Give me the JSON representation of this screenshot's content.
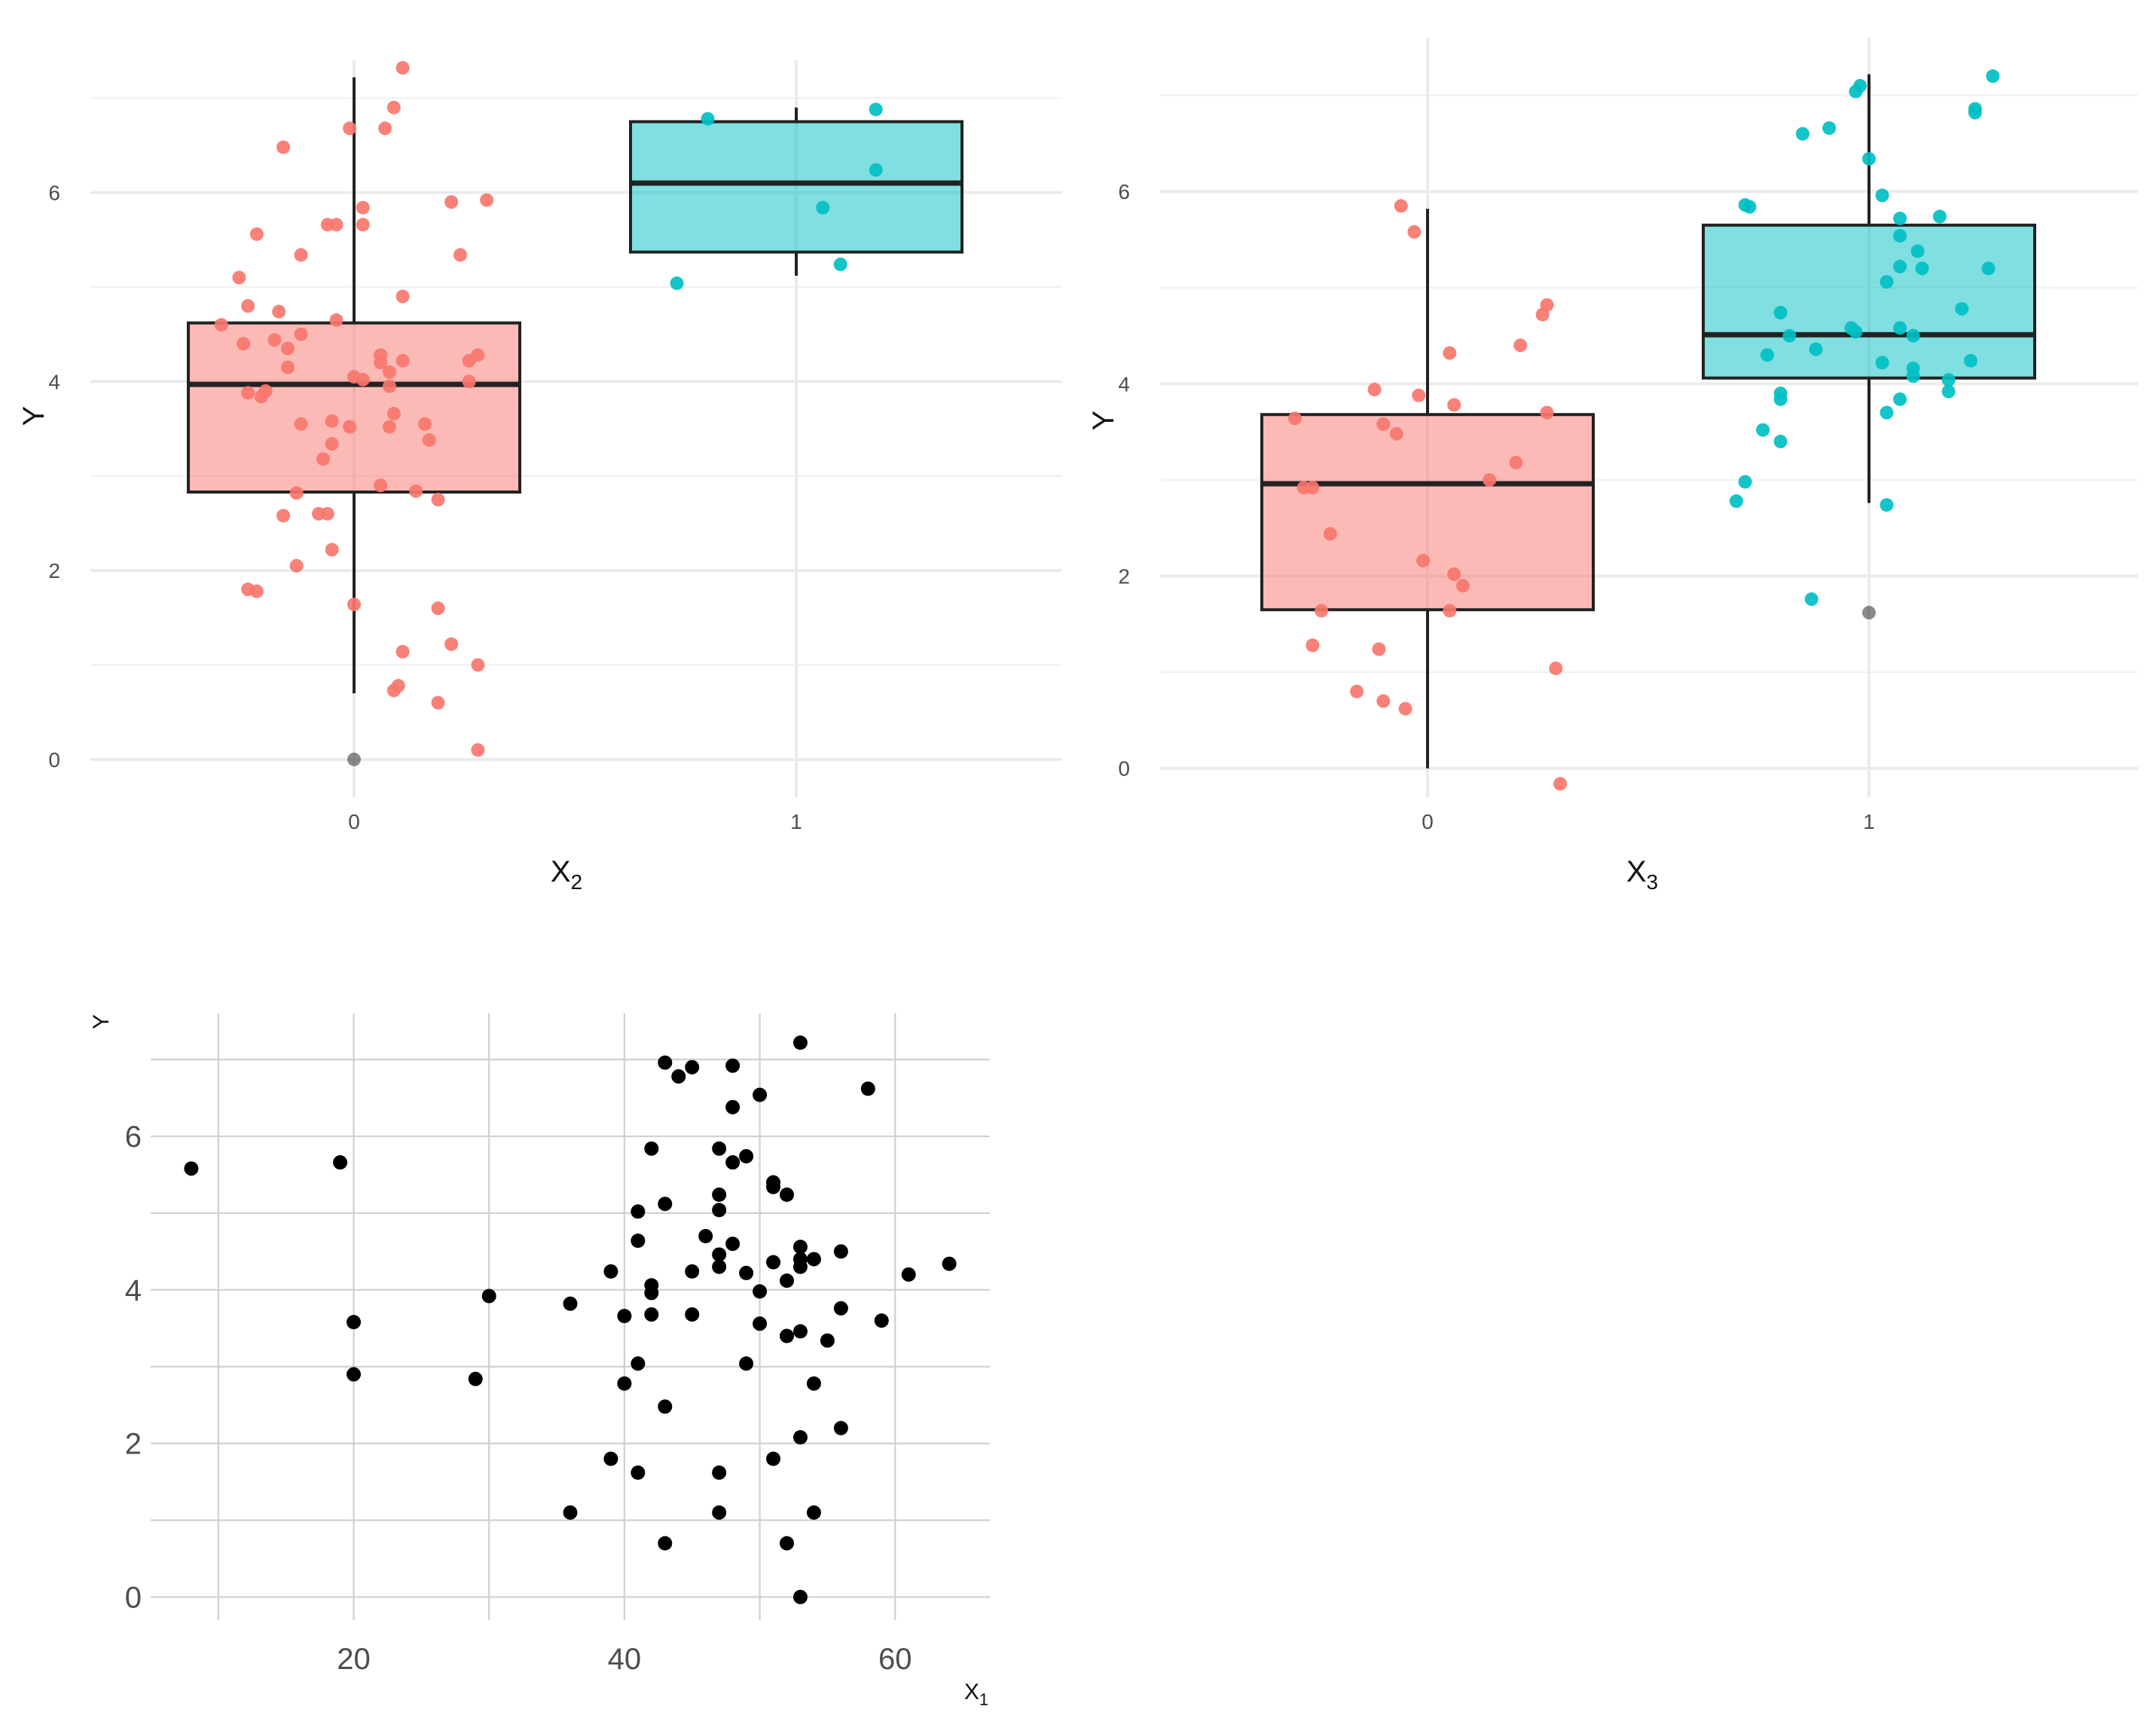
{
  "chart_data": [
    {
      "id": "panel_a",
      "type": "boxplot",
      "title": "",
      "xlabel": "X",
      "xlabel_sub": "2",
      "ylabel": "Y",
      "categories": [
        "0",
        "1"
      ],
      "y_ticks": [
        "0",
        "2",
        "4",
        "6"
      ],
      "ylim": [
        -0.4,
        7.4
      ],
      "colors": {
        "0": "#F8766D",
        "1": "#00BFC4"
      },
      "boxes": [
        {
          "category": "0",
          "min": 0.7,
          "q1": 2.83,
          "median": 3.97,
          "q3": 4.62,
          "max": 7.22,
          "outliers": [
            0.0
          ]
        },
        {
          "category": "1",
          "min": 5.12,
          "q1": 5.37,
          "median": 6.1,
          "q3": 6.75,
          "max": 6.9,
          "outliers": []
        }
      ],
      "points": [
        {
          "category": "0",
          "jitter": 0.11,
          "y": 7.32
        },
        {
          "category": "0",
          "jitter": 0.09,
          "y": 6.9
        },
        {
          "category": "0",
          "jitter": 0.07,
          "y": 6.68
        },
        {
          "category": "0",
          "jitter": -0.01,
          "y": 6.68
        },
        {
          "category": "0",
          "jitter": -0.16,
          "y": 6.48
        },
        {
          "category": "0",
          "jitter": 0.3,
          "y": 5.92
        },
        {
          "category": "0",
          "jitter": 0.22,
          "y": 5.9
        },
        {
          "category": "0",
          "jitter": 0.02,
          "y": 5.84
        },
        {
          "category": "0",
          "jitter": -0.04,
          "y": 5.66
        },
        {
          "category": "0",
          "jitter": -0.06,
          "y": 5.66
        },
        {
          "category": "0",
          "jitter": 0.02,
          "y": 5.66
        },
        {
          "category": "0",
          "jitter": -0.22,
          "y": 5.56
        },
        {
          "category": "0",
          "jitter": -0.12,
          "y": 5.34
        },
        {
          "category": "0",
          "jitter": 0.24,
          "y": 5.34
        },
        {
          "category": "0",
          "jitter": -0.26,
          "y": 5.1
        },
        {
          "category": "0",
          "jitter": 0.11,
          "y": 4.9
        },
        {
          "category": "0",
          "jitter": -0.24,
          "y": 4.8
        },
        {
          "category": "0",
          "jitter": -0.17,
          "y": 4.74
        },
        {
          "category": "0",
          "jitter": -0.04,
          "y": 4.65
        },
        {
          "category": "0",
          "jitter": -0.3,
          "y": 4.6
        },
        {
          "category": "0",
          "jitter": -0.12,
          "y": 4.5
        },
        {
          "category": "0",
          "jitter": -0.18,
          "y": 4.44
        },
        {
          "category": "0",
          "jitter": -0.25,
          "y": 4.4
        },
        {
          "category": "0",
          "jitter": -0.15,
          "y": 4.35
        },
        {
          "category": "0",
          "jitter": 0.06,
          "y": 4.28
        },
        {
          "category": "0",
          "jitter": 0.28,
          "y": 4.28
        },
        {
          "category": "0",
          "jitter": 0.11,
          "y": 4.22
        },
        {
          "category": "0",
          "jitter": 0.06,
          "y": 4.2
        },
        {
          "category": "0",
          "jitter": 0.26,
          "y": 4.22
        },
        {
          "category": "0",
          "jitter": -0.15,
          "y": 4.15
        },
        {
          "category": "0",
          "jitter": 0.08,
          "y": 4.1
        },
        {
          "category": "0",
          "jitter": 0.0,
          "y": 4.05
        },
        {
          "category": "0",
          "jitter": 0.02,
          "y": 4.02
        },
        {
          "category": "0",
          "jitter": 0.26,
          "y": 4.0
        },
        {
          "category": "0",
          "jitter": 0.08,
          "y": 3.95
        },
        {
          "category": "0",
          "jitter": -0.2,
          "y": 3.9
        },
        {
          "category": "0",
          "jitter": -0.24,
          "y": 3.88
        },
        {
          "category": "0",
          "jitter": -0.21,
          "y": 3.84
        },
        {
          "category": "0",
          "jitter": 0.09,
          "y": 3.66
        },
        {
          "category": "0",
          "jitter": -0.05,
          "y": 3.58
        },
        {
          "category": "0",
          "jitter": -0.12,
          "y": 3.55
        },
        {
          "category": "0",
          "jitter": 0.16,
          "y": 3.55
        },
        {
          "category": "0",
          "jitter": 0.08,
          "y": 3.52
        },
        {
          "category": "0",
          "jitter": -0.01,
          "y": 3.52
        },
        {
          "category": "0",
          "jitter": 0.17,
          "y": 3.38
        },
        {
          "category": "0",
          "jitter": -0.05,
          "y": 3.34
        },
        {
          "category": "0",
          "jitter": -0.07,
          "y": 3.18
        },
        {
          "category": "0",
          "jitter": 0.06,
          "y": 2.9
        },
        {
          "category": "0",
          "jitter": 0.14,
          "y": 2.84
        },
        {
          "category": "0",
          "jitter": -0.13,
          "y": 2.82
        },
        {
          "category": "0",
          "jitter": 0.19,
          "y": 2.75
        },
        {
          "category": "0",
          "jitter": -0.06,
          "y": 2.6
        },
        {
          "category": "0",
          "jitter": -0.08,
          "y": 2.6
        },
        {
          "category": "0",
          "jitter": -0.16,
          "y": 2.58
        },
        {
          "category": "0",
          "jitter": -0.05,
          "y": 2.22
        },
        {
          "category": "0",
          "jitter": -0.13,
          "y": 2.05
        },
        {
          "category": "0",
          "jitter": -0.24,
          "y": 1.8
        },
        {
          "category": "0",
          "jitter": -0.22,
          "y": 1.78
        },
        {
          "category": "0",
          "jitter": 0.0,
          "y": 1.64
        },
        {
          "category": "0",
          "jitter": 0.19,
          "y": 1.6
        },
        {
          "category": "0",
          "jitter": 0.22,
          "y": 1.22
        },
        {
          "category": "0",
          "jitter": 0.11,
          "y": 1.14
        },
        {
          "category": "0",
          "jitter": 0.28,
          "y": 1.0
        },
        {
          "category": "0",
          "jitter": 0.1,
          "y": 0.78
        },
        {
          "category": "0",
          "jitter": 0.09,
          "y": 0.73
        },
        {
          "category": "0",
          "jitter": 0.19,
          "y": 0.6
        },
        {
          "category": "0",
          "jitter": 0.28,
          "y": 0.1
        },
        {
          "category": "1",
          "jitter": 0.18,
          "y": 6.88
        },
        {
          "category": "1",
          "jitter": -0.2,
          "y": 6.78
        },
        {
          "category": "1",
          "jitter": 0.18,
          "y": 6.24
        },
        {
          "category": "1",
          "jitter": 0.06,
          "y": 5.84
        },
        {
          "category": "1",
          "jitter": 0.1,
          "y": 5.24
        },
        {
          "category": "1",
          "jitter": -0.27,
          "y": 5.04
        }
      ]
    },
    {
      "id": "panel_b",
      "type": "boxplot",
      "title": "",
      "xlabel": "X",
      "xlabel_sub": "3",
      "ylabel": "Y",
      "categories": [
        "0",
        "1"
      ],
      "y_ticks": [
        "0",
        "2",
        "4",
        "6"
      ],
      "ylim": [
        -0.3,
        7.6
      ],
      "colors": {
        "0": "#F8766D",
        "1": "#00BFC4"
      },
      "boxes": [
        {
          "category": "0",
          "min": 0.0,
          "q1": 1.65,
          "median": 2.96,
          "q3": 3.68,
          "max": 5.82,
          "outliers": []
        },
        {
          "category": "1",
          "min": 2.76,
          "q1": 4.06,
          "median": 4.51,
          "q3": 5.65,
          "max": 7.22,
          "outliers": [
            1.62
          ]
        }
      ],
      "points": [
        {
          "category": "0",
          "jitter": -0.06,
          "y": 5.85
        },
        {
          "category": "0",
          "jitter": -0.03,
          "y": 5.58
        },
        {
          "category": "0",
          "jitter": 0.27,
          "y": 4.82
        },
        {
          "category": "0",
          "jitter": 0.26,
          "y": 4.72
        },
        {
          "category": "0",
          "jitter": 0.21,
          "y": 4.4
        },
        {
          "category": "0",
          "jitter": 0.05,
          "y": 4.32
        },
        {
          "category": "0",
          "jitter": -0.12,
          "y": 3.94
        },
        {
          "category": "0",
          "jitter": -0.02,
          "y": 3.88
        },
        {
          "category": "0",
          "jitter": 0.06,
          "y": 3.78
        },
        {
          "category": "0",
          "jitter": 0.27,
          "y": 3.7
        },
        {
          "category": "0",
          "jitter": -0.3,
          "y": 3.64
        },
        {
          "category": "0",
          "jitter": -0.1,
          "y": 3.58
        },
        {
          "category": "0",
          "jitter": -0.07,
          "y": 3.48
        },
        {
          "category": "0",
          "jitter": 0.2,
          "y": 3.18
        },
        {
          "category": "0",
          "jitter": 0.14,
          "y": 3.0
        },
        {
          "category": "0",
          "jitter": -0.28,
          "y": 2.92
        },
        {
          "category": "0",
          "jitter": -0.26,
          "y": 2.92
        },
        {
          "category": "0",
          "jitter": -0.22,
          "y": 2.44
        },
        {
          "category": "0",
          "jitter": -0.01,
          "y": 2.16
        },
        {
          "category": "0",
          "jitter": 0.06,
          "y": 2.02
        },
        {
          "category": "0",
          "jitter": 0.08,
          "y": 1.9
        },
        {
          "category": "0",
          "jitter": -0.24,
          "y": 1.64
        },
        {
          "category": "0",
          "jitter": 0.05,
          "y": 1.64
        },
        {
          "category": "0",
          "jitter": -0.26,
          "y": 1.28
        },
        {
          "category": "0",
          "jitter": -0.11,
          "y": 1.24
        },
        {
          "category": "0",
          "jitter": 0.29,
          "y": 1.04
        },
        {
          "category": "0",
          "jitter": -0.16,
          "y": 0.8
        },
        {
          "category": "0",
          "jitter": -0.1,
          "y": 0.7
        },
        {
          "category": "0",
          "jitter": -0.05,
          "y": 0.62
        },
        {
          "category": "0",
          "jitter": 0.3,
          "y": -0.16
        },
        {
          "category": "1",
          "jitter": 0.28,
          "y": 7.2
        },
        {
          "category": "1",
          "jitter": -0.02,
          "y": 7.1
        },
        {
          "category": "1",
          "jitter": -0.03,
          "y": 7.04
        },
        {
          "category": "1",
          "jitter": 0.24,
          "y": 6.86
        },
        {
          "category": "1",
          "jitter": 0.24,
          "y": 6.82
        },
        {
          "category": "1",
          "jitter": -0.09,
          "y": 6.66
        },
        {
          "category": "1",
          "jitter": -0.15,
          "y": 6.6
        },
        {
          "category": "1",
          "jitter": 0.0,
          "y": 6.34
        },
        {
          "category": "1",
          "jitter": 0.03,
          "y": 5.96
        },
        {
          "category": "1",
          "jitter": -0.28,
          "y": 5.86
        },
        {
          "category": "1",
          "jitter": -0.27,
          "y": 5.84
        },
        {
          "category": "1",
          "jitter": 0.07,
          "y": 5.72
        },
        {
          "category": "1",
          "jitter": 0.16,
          "y": 5.74
        },
        {
          "category": "1",
          "jitter": 0.07,
          "y": 5.54
        },
        {
          "category": "1",
          "jitter": 0.11,
          "y": 5.38
        },
        {
          "category": "1",
          "jitter": 0.07,
          "y": 5.22
        },
        {
          "category": "1",
          "jitter": 0.12,
          "y": 5.2
        },
        {
          "category": "1",
          "jitter": 0.27,
          "y": 5.2
        },
        {
          "category": "1",
          "jitter": 0.04,
          "y": 5.06
        },
        {
          "category": "1",
          "jitter": 0.21,
          "y": 4.78
        },
        {
          "category": "1",
          "jitter": -0.2,
          "y": 4.74
        },
        {
          "category": "1",
          "jitter": -0.04,
          "y": 4.58
        },
        {
          "category": "1",
          "jitter": 0.07,
          "y": 4.58
        },
        {
          "category": "1",
          "jitter": -0.03,
          "y": 4.54
        },
        {
          "category": "1",
          "jitter": 0.1,
          "y": 4.5
        },
        {
          "category": "1",
          "jitter": -0.18,
          "y": 4.5
        },
        {
          "category": "1",
          "jitter": -0.12,
          "y": 4.36
        },
        {
          "category": "1",
          "jitter": -0.23,
          "y": 4.3
        },
        {
          "category": "1",
          "jitter": 0.23,
          "y": 4.24
        },
        {
          "category": "1",
          "jitter": 0.03,
          "y": 4.22
        },
        {
          "category": "1",
          "jitter": 0.1,
          "y": 4.16
        },
        {
          "category": "1",
          "jitter": 0.1,
          "y": 4.08
        },
        {
          "category": "1",
          "jitter": 0.18,
          "y": 4.04
        },
        {
          "category": "1",
          "jitter": 0.18,
          "y": 3.92
        },
        {
          "category": "1",
          "jitter": -0.2,
          "y": 3.9
        },
        {
          "category": "1",
          "jitter": -0.2,
          "y": 3.84
        },
        {
          "category": "1",
          "jitter": 0.07,
          "y": 3.84
        },
        {
          "category": "1",
          "jitter": 0.04,
          "y": 3.7
        },
        {
          "category": "1",
          "jitter": -0.24,
          "y": 3.52
        },
        {
          "category": "1",
          "jitter": -0.2,
          "y": 3.4
        },
        {
          "category": "1",
          "jitter": -0.28,
          "y": 2.98
        },
        {
          "category": "1",
          "jitter": -0.3,
          "y": 2.78
        },
        {
          "category": "1",
          "jitter": 0.04,
          "y": 2.74
        },
        {
          "category": "1",
          "jitter": -0.13,
          "y": 1.76
        }
      ]
    },
    {
      "id": "panel_c",
      "type": "scatter",
      "title": "",
      "xlabel": "X",
      "xlabel_sub": "1",
      "ylabel": "Y",
      "x_ticks": [
        "20",
        "40",
        "60"
      ],
      "y_ticks": [
        "0",
        "2",
        "4",
        "6"
      ],
      "xlim": [
        5,
        67
      ],
      "ylim": [
        -0.3,
        7.6
      ],
      "color": "#000000",
      "points": [
        [
          8,
          5.58
        ],
        [
          19,
          5.66
        ],
        [
          20,
          3.58
        ],
        [
          20,
          2.9
        ],
        [
          29,
          2.84
        ],
        [
          30,
          3.92
        ],
        [
          36,
          3.82
        ],
        [
          36,
          1.1
        ],
        [
          39,
          4.24
        ],
        [
          39,
          1.8
        ],
        [
          40,
          3.66
        ],
        [
          40,
          2.78
        ],
        [
          41,
          5.02
        ],
        [
          41,
          4.64
        ],
        [
          41,
          3.04
        ],
        [
          41,
          1.62
        ],
        [
          42,
          5.84
        ],
        [
          42,
          4.06
        ],
        [
          42,
          3.96
        ],
        [
          42,
          3.68
        ],
        [
          43,
          6.96
        ],
        [
          43,
          5.12
        ],
        [
          43,
          2.48
        ],
        [
          43,
          0.7
        ],
        [
          44,
          6.78
        ],
        [
          45,
          6.9
        ],
        [
          45,
          4.24
        ],
        [
          45,
          3.68
        ],
        [
          46,
          4.7
        ],
        [
          47,
          5.84
        ],
        [
          47,
          5.24
        ],
        [
          47,
          5.04
        ],
        [
          47,
          4.46
        ],
        [
          47,
          4.3
        ],
        [
          47,
          1.62
        ],
        [
          47,
          1.1
        ],
        [
          48,
          6.92
        ],
        [
          48,
          6.38
        ],
        [
          48,
          5.66
        ],
        [
          48,
          4.6
        ],
        [
          49,
          5.74
        ],
        [
          49,
          4.22
        ],
        [
          49,
          3.04
        ],
        [
          50,
          6.54
        ],
        [
          50,
          3.98
        ],
        [
          50,
          3.56
        ],
        [
          51,
          5.4
        ],
        [
          51,
          5.34
        ],
        [
          51,
          4.36
        ],
        [
          51,
          1.8
        ],
        [
          52,
          5.24
        ],
        [
          52,
          4.12
        ],
        [
          52,
          3.4
        ],
        [
          52,
          0.7
        ],
        [
          53,
          7.22
        ],
        [
          53,
          4.56
        ],
        [
          53,
          4.4
        ],
        [
          53,
          4.3
        ],
        [
          53,
          3.46
        ],
        [
          53,
          2.08
        ],
        [
          53,
          0.0
        ],
        [
          54,
          4.4
        ],
        [
          54,
          2.78
        ],
        [
          54,
          1.1
        ],
        [
          55,
          3.34
        ],
        [
          56,
          4.5
        ],
        [
          56,
          3.76
        ],
        [
          56,
          2.2
        ],
        [
          58,
          6.62
        ],
        [
          59,
          3.6
        ],
        [
          61,
          4.2
        ],
        [
          64,
          4.34
        ]
      ]
    }
  ]
}
